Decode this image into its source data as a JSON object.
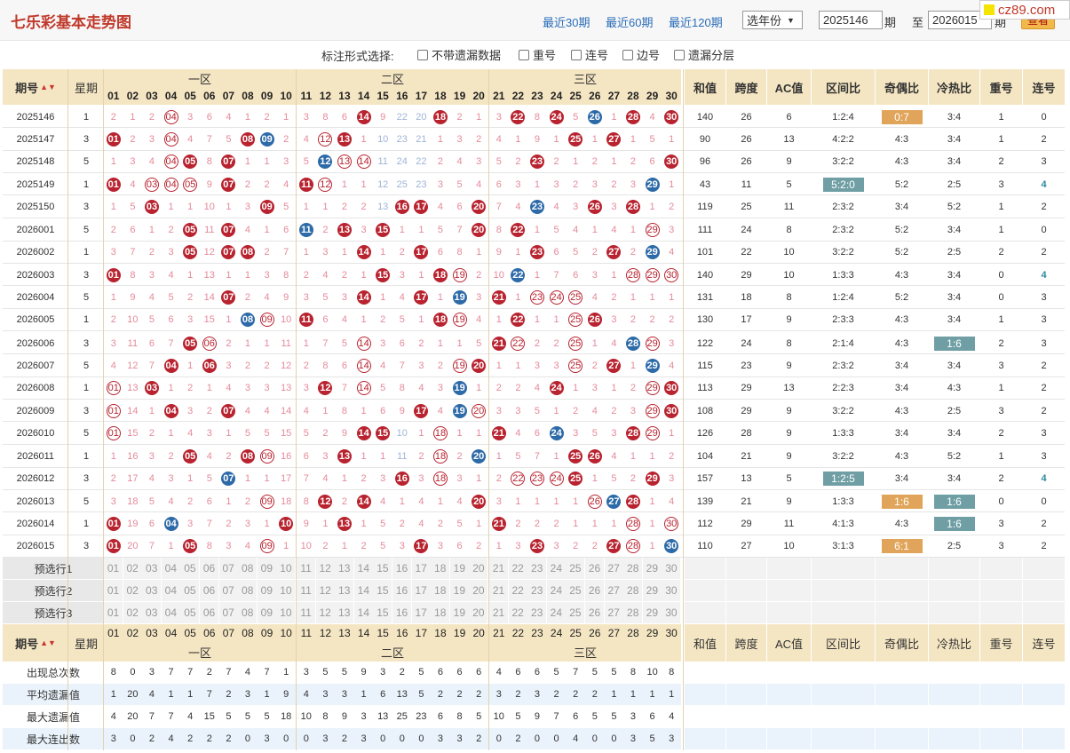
{
  "page": {
    "title": "七乐彩基本走势图",
    "watermark": "cz89.com",
    "quick_links": [
      "最近30期",
      "最近60期",
      "最近120期"
    ],
    "year_select": "选年份",
    "start_period": "2025146",
    "period_label": "期",
    "to_label": "至",
    "end_period": "2026015",
    "end_period_label": "期",
    "view_button": "查看"
  },
  "options": {
    "label": "标注形式选择:",
    "checkboxes": [
      "不带遗漏数据",
      "重号",
      "连号",
      "边号",
      "遗漏分层"
    ]
  },
  "headers": {
    "period": "期号",
    "weekday": "星期",
    "zones": [
      "一区",
      "二区",
      "三区"
    ],
    "stats": [
      "和值",
      "跨度",
      "AC值",
      "区间比",
      "奇偶比",
      "冷热比",
      "重号",
      "连号"
    ]
  },
  "numbers": [
    "01",
    "02",
    "03",
    "04",
    "05",
    "06",
    "07",
    "08",
    "09",
    "10",
    "11",
    "12",
    "13",
    "14",
    "15",
    "16",
    "17",
    "18",
    "19",
    "20",
    "21",
    "22",
    "23",
    "24",
    "25",
    "26",
    "27",
    "28",
    "29",
    "30"
  ],
  "rows": [
    {
      "period": "2025146",
      "week": "1",
      "cells": [
        "2",
        "1",
        "2",
        "r:04",
        "3",
        "6",
        "4",
        "1",
        "2",
        "1",
        "3",
        "8",
        "6",
        "R:14",
        "9",
        "22",
        "20",
        "R:18",
        "2",
        "1",
        "3",
        "R:22",
        "8",
        "R:24",
        "5",
        "B:26",
        "1",
        "R:28",
        "4",
        "R:30"
      ],
      "sum": "140",
      "span": "26",
      "ac": "6",
      "zone": "1:2:4",
      "oe": "0:7",
      "oe_hi": "orange",
      "ch": "3:4",
      "ch_hi": "",
      "rep": "1",
      "con": "0",
      "con_hi": false
    },
    {
      "period": "2025147",
      "week": "3",
      "cells": [
        "R:01",
        "2",
        "3",
        "r:04",
        "4",
        "7",
        "5",
        "R:08",
        "B:09",
        "2",
        "4",
        "r:12",
        "R:13",
        "1",
        "10",
        "23",
        "21",
        "1",
        "3",
        "2",
        "4",
        "1",
        "9",
        "1",
        "R:25",
        "1",
        "R:27",
        "1",
        "5",
        "1"
      ],
      "sum": "90",
      "span": "26",
      "ac": "13",
      "zone": "4:2:2",
      "oe": "4:3",
      "oe_hi": "",
      "ch": "3:4",
      "ch_hi": "",
      "rep": "1",
      "con": "2",
      "con_hi": false
    },
    {
      "period": "2025148",
      "week": "5",
      "cells": [
        "1",
        "3",
        "4",
        "r:04",
        "R:05",
        "8",
        "R:07",
        "1",
        "1",
        "3",
        "5",
        "B:12",
        "r:13",
        "r:14",
        "11",
        "24",
        "22",
        "2",
        "4",
        "3",
        "5",
        "2",
        "R:23",
        "2",
        "1",
        "2",
        "1",
        "2",
        "6",
        "R:30"
      ],
      "sum": "96",
      "span": "26",
      "ac": "9",
      "zone": "3:2:2",
      "oe": "4:3",
      "oe_hi": "",
      "ch": "3:4",
      "ch_hi": "",
      "rep": "2",
      "con": "3",
      "con_hi": false
    },
    {
      "period": "2025149",
      "week": "1",
      "cells": [
        "R:01",
        "4",
        "r:03",
        "r:04",
        "r:05",
        "9",
        "R:07",
        "2",
        "2",
        "4",
        "R:11",
        "r:12",
        "1",
        "1",
        "12",
        "25",
        "23",
        "3",
        "5",
        "4",
        "6",
        "3",
        "1",
        "3",
        "2",
        "3",
        "2",
        "3",
        "B:29",
        "1"
      ],
      "sum": "43",
      "span": "11",
      "ac": "5",
      "zone": "5:2:0",
      "oe": "5:2",
      "oe_hi": "",
      "ch": "2:5",
      "ch_hi": "",
      "rep": "3",
      "con": "4",
      "con_hi": true,
      "zone_hi": "teal"
    },
    {
      "period": "2025150",
      "week": "3",
      "cells": [
        "1",
        "5",
        "R:03",
        "1",
        "1",
        "10",
        "1",
        "3",
        "R:09",
        "5",
        "1",
        "1",
        "2",
        "2",
        "13",
        "R:16",
        "R:17",
        "4",
        "6",
        "R:20",
        "7",
        "4",
        "B:23",
        "4",
        "3",
        "R:26",
        "3",
        "R:28",
        "1",
        "2"
      ],
      "sum": "119",
      "span": "25",
      "ac": "11",
      "zone": "2:3:2",
      "oe": "3:4",
      "oe_hi": "",
      "ch": "5:2",
      "ch_hi": "",
      "rep": "1",
      "con": "2",
      "con_hi": false
    },
    {
      "period": "2026001",
      "week": "5",
      "cells": [
        "2",
        "6",
        "1",
        "2",
        "R:05",
        "11",
        "R:07",
        "4",
        "1",
        "6",
        "B:11",
        "2",
        "R:13",
        "3",
        "R:15",
        "1",
        "1",
        "5",
        "7",
        "R:20",
        "8",
        "R:22",
        "1",
        "5",
        "4",
        "1",
        "4",
        "1",
        "r:29",
        "3"
      ],
      "sum": "111",
      "span": "24",
      "ac": "8",
      "zone": "2:3:2",
      "oe": "5:2",
      "oe_hi": "",
      "ch": "3:4",
      "ch_hi": "",
      "rep": "1",
      "con": "0",
      "con_hi": false
    },
    {
      "period": "2026002",
      "week": "1",
      "cells": [
        "3",
        "7",
        "2",
        "3",
        "R:05",
        "12",
        "R:07",
        "R:08",
        "2",
        "7",
        "1",
        "3",
        "1",
        "R:14",
        "1",
        "2",
        "R:17",
        "6",
        "8",
        "1",
        "9",
        "1",
        "R:23",
        "6",
        "5",
        "2",
        "R:27",
        "2",
        "B:29",
        "4"
      ],
      "sum": "101",
      "span": "22",
      "ac": "10",
      "zone": "3:2:2",
      "oe": "5:2",
      "oe_hi": "",
      "ch": "2:5",
      "ch_hi": "",
      "rep": "2",
      "con": "2",
      "con_hi": false
    },
    {
      "period": "2026003",
      "week": "3",
      "cells": [
        "R:01",
        "8",
        "3",
        "4",
        "1",
        "13",
        "1",
        "1",
        "3",
        "8",
        "2",
        "4",
        "2",
        "1",
        "R:15",
        "3",
        "1",
        "R:18",
        "r:19",
        "2",
        "10",
        "B:22",
        "1",
        "7",
        "6",
        "3",
        "1",
        "r:28",
        "r:29",
        "r:30"
      ],
      "sum": "140",
      "span": "29",
      "ac": "10",
      "zone": "1:3:3",
      "oe": "4:3",
      "oe_hi": "",
      "ch": "3:4",
      "ch_hi": "",
      "rep": "0",
      "con": "4",
      "con_hi": true
    },
    {
      "period": "2026004",
      "week": "5",
      "cells": [
        "1",
        "9",
        "4",
        "5",
        "2",
        "14",
        "R:07",
        "2",
        "4",
        "9",
        "3",
        "5",
        "3",
        "R:14",
        "1",
        "4",
        "R:17",
        "1",
        "B:19",
        "3",
        "R:21",
        "1",
        "r:23",
        "r:24",
        "r:25",
        "4",
        "2",
        "1",
        "1",
        "1"
      ],
      "sum": "131",
      "span": "18",
      "ac": "8",
      "zone": "1:2:4",
      "oe": "5:2",
      "oe_hi": "",
      "ch": "3:4",
      "ch_hi": "",
      "rep": "0",
      "con": "3",
      "con_hi": false
    },
    {
      "period": "2026005",
      "week": "1",
      "cells": [
        "2",
        "10",
        "5",
        "6",
        "3",
        "15",
        "1",
        "B:08",
        "r:09",
        "10",
        "R:11",
        "6",
        "4",
        "1",
        "2",
        "5",
        "1",
        "R:18",
        "r:19",
        "4",
        "1",
        "R:22",
        "1",
        "1",
        "r:25",
        "R:26",
        "3",
        "2",
        "2",
        "2"
      ],
      "sum": "130",
      "span": "17",
      "ac": "9",
      "zone": "2:3:3",
      "oe": "4:3",
      "oe_hi": "",
      "ch": "3:4",
      "ch_hi": "",
      "rep": "1",
      "con": "3",
      "con_hi": false
    },
    {
      "period": "2026006",
      "week": "3",
      "cells": [
        "3",
        "11",
        "6",
        "7",
        "R:05",
        "r:06",
        "2",
        "1",
        "1",
        "11",
        "1",
        "7",
        "5",
        "r:14",
        "3",
        "6",
        "2",
        "1",
        "1",
        "5",
        "R:21",
        "r:22",
        "2",
        "2",
        "r:25",
        "1",
        "4",
        "B:28",
        "r:29",
        "3"
      ],
      "sum": "122",
      "span": "24",
      "ac": "8",
      "zone": "2:1:4",
      "oe": "4:3",
      "oe_hi": "",
      "ch": "1:6",
      "ch_hi": "teal",
      "rep": "2",
      "con": "3",
      "con_hi": false
    },
    {
      "period": "2026007",
      "week": "5",
      "cells": [
        "4",
        "12",
        "7",
        "R:04",
        "1",
        "R:06",
        "3",
        "2",
        "2",
        "12",
        "2",
        "8",
        "6",
        "r:14",
        "4",
        "7",
        "3",
        "2",
        "r:19",
        "R:20",
        "1",
        "1",
        "3",
        "3",
        "r:25",
        "2",
        "R:27",
        "1",
        "B:29",
        "4"
      ],
      "sum": "115",
      "span": "23",
      "ac": "9",
      "zone": "2:3:2",
      "oe": "3:4",
      "oe_hi": "",
      "ch": "3:4",
      "ch_hi": "",
      "rep": "3",
      "con": "2",
      "con_hi": false
    },
    {
      "period": "2026008",
      "week": "1",
      "cells": [
        "r:01",
        "13",
        "R:03",
        "1",
        "2",
        "1",
        "4",
        "3",
        "3",
        "13",
        "3",
        "R:12",
        "7",
        "r:14",
        "5",
        "8",
        "4",
        "3",
        "B:19",
        "1",
        "2",
        "2",
        "4",
        "R:24",
        "1",
        "3",
        "1",
        "2",
        "r:29",
        "R:30"
      ],
      "sum": "113",
      "span": "29",
      "ac": "13",
      "zone": "2:2:3",
      "oe": "3:4",
      "oe_hi": "",
      "ch": "4:3",
      "ch_hi": "",
      "rep": "1",
      "con": "2",
      "con_hi": false
    },
    {
      "period": "2026009",
      "week": "3",
      "cells": [
        "r:01",
        "14",
        "1",
        "R:04",
        "3",
        "2",
        "R:07",
        "4",
        "4",
        "14",
        "4",
        "1",
        "8",
        "1",
        "6",
        "9",
        "R:17",
        "4",
        "B:19",
        "r:20",
        "3",
        "3",
        "5",
        "1",
        "2",
        "4",
        "2",
        "3",
        "r:29",
        "R:30"
      ],
      "sum": "108",
      "span": "29",
      "ac": "9",
      "zone": "3:2:2",
      "oe": "4:3",
      "oe_hi": "",
      "ch": "2:5",
      "ch_hi": "",
      "rep": "3",
      "con": "2",
      "con_hi": false
    },
    {
      "period": "2026010",
      "week": "5",
      "cells": [
        "r:01",
        "15",
        "2",
        "1",
        "4",
        "3",
        "1",
        "5",
        "5",
        "15",
        "5",
        "2",
        "9",
        "R:14",
        "R:15",
        "10",
        "1",
        "r:18",
        "1",
        "1",
        "R:21",
        "4",
        "6",
        "B:24",
        "3",
        "5",
        "3",
        "R:28",
        "r:29",
        "1"
      ],
      "sum": "126",
      "span": "28",
      "ac": "9",
      "zone": "1:3:3",
      "oe": "3:4",
      "oe_hi": "",
      "ch": "3:4",
      "ch_hi": "",
      "rep": "2",
      "con": "3",
      "con_hi": false
    },
    {
      "period": "2026011",
      "week": "1",
      "cells": [
        "1",
        "16",
        "3",
        "2",
        "R:05",
        "4",
        "2",
        "R:08",
        "r:09",
        "16",
        "6",
        "3",
        "R:13",
        "1",
        "1",
        "11",
        "2",
        "r:18",
        "2",
        "B:20",
        "1",
        "5",
        "7",
        "1",
        "R:25",
        "R:26",
        "4",
        "1",
        "1",
        "2"
      ],
      "sum": "104",
      "span": "21",
      "ac": "9",
      "zone": "3:2:2",
      "oe": "4:3",
      "oe_hi": "",
      "ch": "5:2",
      "ch_hi": "",
      "rep": "1",
      "con": "3",
      "con_hi": false
    },
    {
      "period": "2026012",
      "week": "3",
      "cells": [
        "2",
        "17",
        "4",
        "3",
        "1",
        "5",
        "B:07",
        "1",
        "1",
        "17",
        "7",
        "4",
        "1",
        "2",
        "3",
        "R:16",
        "3",
        "r:18",
        "3",
        "1",
        "2",
        "r:22",
        "r:23",
        "r:24",
        "R:25",
        "1",
        "5",
        "2",
        "R:29",
        "3"
      ],
      "sum": "157",
      "span": "13",
      "ac": "5",
      "zone": "1:2:5",
      "oe": "3:4",
      "oe_hi": "",
      "ch": "3:4",
      "ch_hi": "",
      "rep": "2",
      "con": "4",
      "con_hi": true,
      "zone_hi": "teal"
    },
    {
      "period": "2026013",
      "week": "5",
      "cells": [
        "3",
        "18",
        "5",
        "4",
        "2",
        "6",
        "1",
        "2",
        "r:09",
        "18",
        "8",
        "R:12",
        "2",
        "R:14",
        "4",
        "1",
        "4",
        "1",
        "4",
        "R:20",
        "3",
        "1",
        "1",
        "1",
        "1",
        "r:26",
        "B:27",
        "R:28",
        "1",
        "4"
      ],
      "sum": "139",
      "span": "21",
      "ac": "9",
      "zone": "1:3:3",
      "oe": "1:6",
      "oe_hi": "orange",
      "ch": "1:6",
      "ch_hi": "teal",
      "rep": "0",
      "con": "0",
      "con_hi": false
    },
    {
      "period": "2026014",
      "week": "1",
      "cells": [
        "R:01",
        "19",
        "6",
        "B:04",
        "3",
        "7",
        "2",
        "3",
        "1",
        "R:10",
        "9",
        "1",
        "R:13",
        "1",
        "5",
        "2",
        "4",
        "2",
        "5",
        "1",
        "R:21",
        "2",
        "2",
        "2",
        "1",
        "1",
        "1",
        "r:28",
        "1",
        "r:30"
      ],
      "sum": "112",
      "span": "29",
      "ac": "11",
      "zone": "4:1:3",
      "oe": "4:3",
      "oe_hi": "",
      "ch": "1:6",
      "ch_hi": "teal",
      "rep": "3",
      "con": "2",
      "con_hi": false
    },
    {
      "period": "2026015",
      "week": "3",
      "cells": [
        "R:01",
        "20",
        "7",
        "1",
        "R:05",
        "8",
        "3",
        "4",
        "r:09",
        "1",
        "10",
        "2",
        "1",
        "2",
        "5",
        "3",
        "R:17",
        "3",
        "6",
        "2",
        "1",
        "3",
        "R:23",
        "3",
        "2",
        "2",
        "R:27",
        "r:28",
        "1",
        "B:30"
      ],
      "sum": "110",
      "span": "27",
      "ac": "10",
      "zone": "3:1:3",
      "oe": "6:1",
      "oe_hi": "orange",
      "ch": "2:5",
      "ch_hi": "",
      "rep": "3",
      "con": "2",
      "con_hi": false
    }
  ],
  "preselect": [
    "预选行1",
    "预选行2",
    "预选行3"
  ],
  "footer": {
    "period": "期号",
    "weekday": "星期",
    "zones": [
      "一区",
      "二区",
      "三区"
    ],
    "stats": [
      "和值",
      "跨度",
      "AC值",
      "区间比",
      "奇偶比",
      "冷热比",
      "重号",
      "连号"
    ]
  },
  "summary": [
    {
      "label": "出现总次数",
      "values": [
        "8",
        "0",
        "3",
        "7",
        "7",
        "2",
        "7",
        "4",
        "7",
        "1",
        "3",
        "5",
        "5",
        "9",
        "3",
        "2",
        "5",
        "6",
        "6",
        "6",
        "4",
        "6",
        "6",
        "5",
        "7",
        "5",
        "5",
        "8",
        "10",
        "8"
      ]
    },
    {
      "label": "平均遗漏值",
      "values": [
        "1",
        "20",
        "4",
        "1",
        "1",
        "7",
        "2",
        "3",
        "1",
        "9",
        "4",
        "3",
        "3",
        "1",
        "6",
        "13",
        "5",
        "2",
        "2",
        "2",
        "3",
        "2",
        "3",
        "2",
        "2",
        "2",
        "1",
        "1",
        "1",
        "1"
      ]
    },
    {
      "label": "最大遗漏值",
      "values": [
        "4",
        "20",
        "7",
        "7",
        "4",
        "15",
        "5",
        "5",
        "5",
        "18",
        "10",
        "8",
        "9",
        "3",
        "13",
        "25",
        "23",
        "6",
        "8",
        "5",
        "10",
        "5",
        "9",
        "7",
        "6",
        "5",
        "5",
        "3",
        "6",
        "4"
      ]
    },
    {
      "label": "最大连出数",
      "values": [
        "3",
        "0",
        "2",
        "4",
        "2",
        "2",
        "2",
        "0",
        "3",
        "0",
        "0",
        "3",
        "2",
        "3",
        "0",
        "0",
        "0",
        "3",
        "3",
        "2",
        "0",
        "2",
        "0",
        "0",
        "4",
        "0",
        "0",
        "3",
        "5",
        "3"
      ]
    }
  ],
  "colors": {
    "red_ball": "#b8232f",
    "blue_ball": "#2d6aa8",
    "header_bg": "#f5e6c3",
    "title": "#c0392b",
    "link": "#2a6db8"
  }
}
